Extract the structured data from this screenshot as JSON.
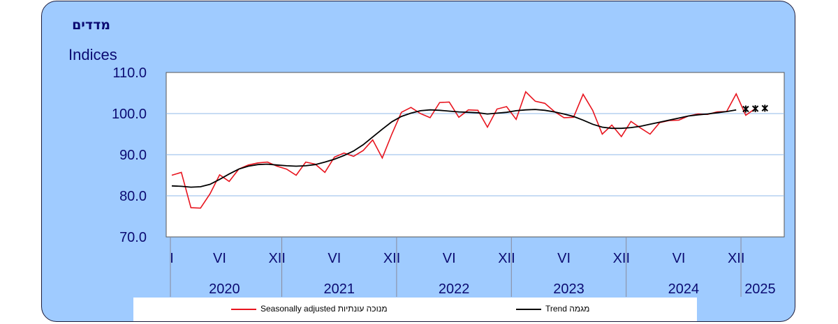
{
  "ylabel_he": "מדדים",
  "ylabel_en": "Indices",
  "legend": {
    "seasonal_label": "Seasonally adjusted  מנוכה עונתיות",
    "trend_label": "Trend  מגמה"
  },
  "colors": {
    "seasonal": "#e8141e",
    "trend": "#000000",
    "text": "#0b0b72",
    "panel": "#9fcbff"
  },
  "chart_data": {
    "type": "line",
    "ylim": [
      70,
      110
    ],
    "yticks": [
      "70.0",
      "80.0",
      "90.0",
      "100.0",
      "110.0"
    ],
    "grid": true,
    "x_range_months": [
      "2020-01",
      "2025-04"
    ],
    "month_ticks": [
      {
        "month": "2020-01",
        "label": "I"
      },
      {
        "month": "2020-06",
        "label": "VI"
      },
      {
        "month": "2020-12",
        "label": "XII"
      },
      {
        "month": "2021-06",
        "label": "VI"
      },
      {
        "month": "2021-12",
        "label": "XII"
      },
      {
        "month": "2022-06",
        "label": "VI"
      },
      {
        "month": "2022-12",
        "label": "XII"
      },
      {
        "month": "2023-06",
        "label": "VI"
      },
      {
        "month": "2023-12",
        "label": "XII"
      },
      {
        "month": "2024-06",
        "label": "VI"
      },
      {
        "month": "2024-12",
        "label": "XII"
      }
    ],
    "years": [
      "2020",
      "2021",
      "2022",
      "2023",
      "2024",
      "2025"
    ],
    "series": [
      {
        "name": "Seasonally adjusted",
        "start": "2020-01",
        "values": [
          85.0,
          85.7,
          77.1,
          77.0,
          80.5,
          85.1,
          83.5,
          86.5,
          87.5,
          88.0,
          88.2,
          87.2,
          86.5,
          85.0,
          88.2,
          87.7,
          85.7,
          89.4,
          90.4,
          89.6,
          91.0,
          93.6,
          89.2,
          95.0,
          100.3,
          101.5,
          100.0,
          99.0,
          102.7,
          102.8,
          99.1,
          100.9,
          100.8,
          96.7,
          101.1,
          101.7,
          98.6,
          105.3,
          103.0,
          102.5,
          100.5,
          99.0,
          99.1,
          104.7,
          100.8,
          95.0,
          97.2,
          94.4,
          98.1,
          96.5,
          95.0,
          97.8,
          98.3,
          98.4,
          99.4,
          99.9,
          99.8,
          100.4,
          100.5,
          104.8,
          99.6,
          101.2
        ]
      },
      {
        "name": "Trend",
        "start": "2020-01",
        "values": [
          82.4,
          82.3,
          82.1,
          82.2,
          82.8,
          84.0,
          85.3,
          86.5,
          87.2,
          87.6,
          87.7,
          87.5,
          87.3,
          87.2,
          87.3,
          87.6,
          88.2,
          88.9,
          89.8,
          90.9,
          92.4,
          94.3,
          96.2,
          98.0,
          99.3,
          100.1,
          100.7,
          100.9,
          100.8,
          100.6,
          100.4,
          100.3,
          100.2,
          99.9,
          100.1,
          100.3,
          100.7,
          100.9,
          101.0,
          100.8,
          100.4,
          99.9,
          99.3,
          98.4,
          97.4,
          96.7,
          96.4,
          96.4,
          96.6,
          96.9,
          97.4,
          97.9,
          98.4,
          98.9,
          99.4,
          99.7,
          99.9,
          100.2,
          100.5,
          100.9
        ],
        "forecast_start": "2025-01",
        "forecast_values": [
          101.1,
          101.2,
          101.3
        ]
      }
    ]
  }
}
